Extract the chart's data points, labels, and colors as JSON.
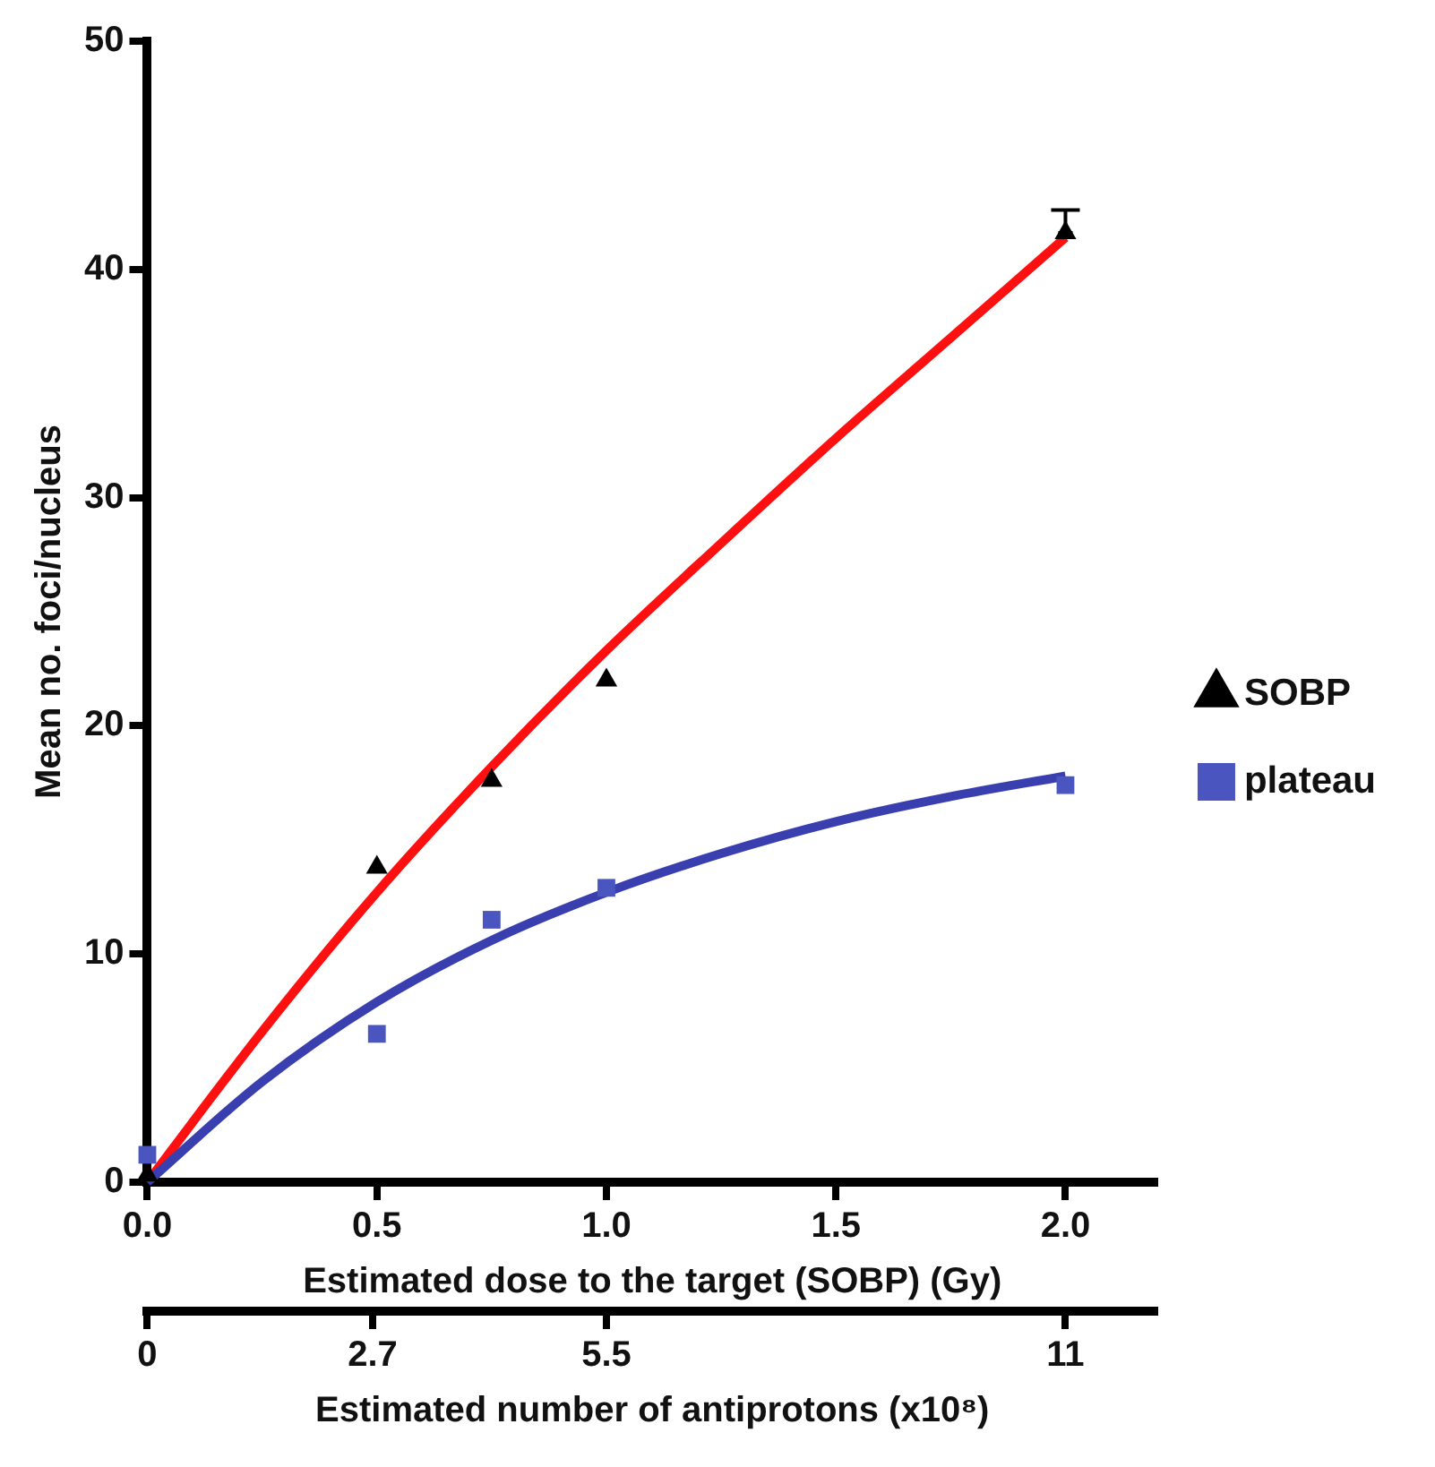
{
  "chart_data": {
    "type": "scatter",
    "xlabel": "Estimated dose to the target (SOBP) (Gy)",
    "ylabel": "Mean no. foci/nucleus",
    "x2label": "Estimated number of antiprotons (x10⁸)",
    "xlim": [
      0,
      2.2
    ],
    "xticks": [
      {
        "value": 0,
        "label": "0.0"
      },
      0.5,
      {
        "value": 1,
        "label": "1.0"
      },
      1.5,
      {
        "value": 2,
        "label": "2.0"
      }
    ],
    "x2lim": [
      0,
      12.1
    ],
    "x2ticks": [
      0,
      2.7,
      5.5,
      11
    ],
    "ylim": [
      0,
      50
    ],
    "yticks": [
      0,
      10,
      20,
      30,
      40,
      50
    ],
    "grid": false,
    "legend": "right",
    "series": [
      {
        "name": "SOBP",
        "type": "scatter",
        "marker": "triangle",
        "color": "#000000",
        "x": [
          0,
          0.5,
          0.75,
          1.0,
          2.0
        ],
        "values": [
          0.3,
          13.8,
          17.6,
          22,
          41.6
        ],
        "errors": [
          null,
          null,
          null,
          null,
          [
            41.6,
            42.6
          ]
        ]
      },
      {
        "name": "plateau",
        "type": "scatter",
        "marker": "square",
        "color": "#4a55c0",
        "x": [
          0,
          0.5,
          0.75,
          1.0,
          2.0
        ],
        "values": [
          1.2,
          6.5,
          11.5,
          12.9,
          17.4
        ]
      },
      {
        "type": "line",
        "marker": "none",
        "color": "#ff1010",
        "x": [
          0,
          0.25,
          0.5,
          0.75,
          1.0,
          1.25,
          1.5,
          1.75,
          2.0
        ],
        "values": [
          0,
          6.6,
          12.7,
          18.2,
          23.3,
          28,
          32.6,
          37,
          41.4
        ]
      },
      {
        "type": "line",
        "marker": "none",
        "color": "#3a3fb0",
        "x": [
          0,
          0.25,
          0.5,
          0.75,
          1.0,
          1.25,
          1.5,
          1.75,
          2.0
        ],
        "values": [
          0,
          4.4,
          7.9,
          10.6,
          12.7,
          14.4,
          15.8,
          16.9,
          17.8
        ]
      }
    ]
  }
}
